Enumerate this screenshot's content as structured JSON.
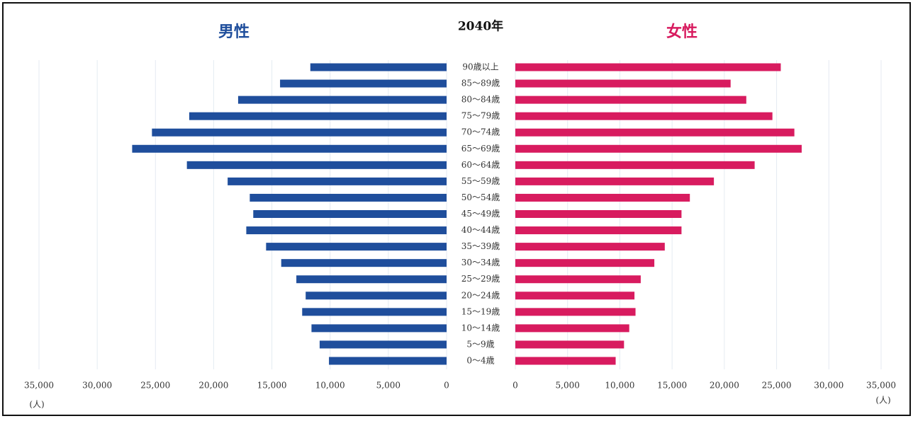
{
  "chart_data": {
    "type": "pyramid",
    "title": "2040年",
    "unit_label": "(人)",
    "categories": [
      "90歳以上",
      "85～89歳",
      "80～84歳",
      "75～79歳",
      "70～74歳",
      "65～69歳",
      "60～64歳",
      "55～59歳",
      "50～54歳",
      "45～49歳",
      "40～44歳",
      "35～39歳",
      "30～34歳",
      "25～29歳",
      "20～24歳",
      "15～19歳",
      "10～14歳",
      "5～9歳",
      "0～4歳"
    ],
    "series": [
      {
        "name": "男性",
        "color": "#1f4e9c",
        "side": "left",
        "values": [
          11700,
          14300,
          17900,
          22100,
          25300,
          27000,
          22300,
          18800,
          16900,
          16600,
          17200,
          15500,
          14200,
          12900,
          12100,
          12400,
          11600,
          10900,
          10100
        ]
      },
      {
        "name": "女性",
        "color": "#d81b5f",
        "side": "right",
        "values": [
          25400,
          20600,
          22100,
          24600,
          26700,
          27400,
          22900,
          19000,
          16700,
          15900,
          15900,
          14300,
          13300,
          12000,
          11400,
          11500,
          10900,
          10400,
          9600
        ]
      }
    ],
    "xlim": [
      0,
      35000
    ],
    "xticks": [
      0,
      {
        "value": 5000,
        "label": "5,000"
      },
      {
        "value": 10000,
        "label": "10,000"
      },
      {
        "value": 15000,
        "label": "15,000"
      },
      {
        "value": 20000,
        "label": "20,000"
      },
      {
        "value": 25000,
        "label": "25,000"
      },
      {
        "value": 30000,
        "label": "30,000"
      },
      {
        "value": 35000,
        "label": "35,000"
      }
    ],
    "grid": true
  }
}
